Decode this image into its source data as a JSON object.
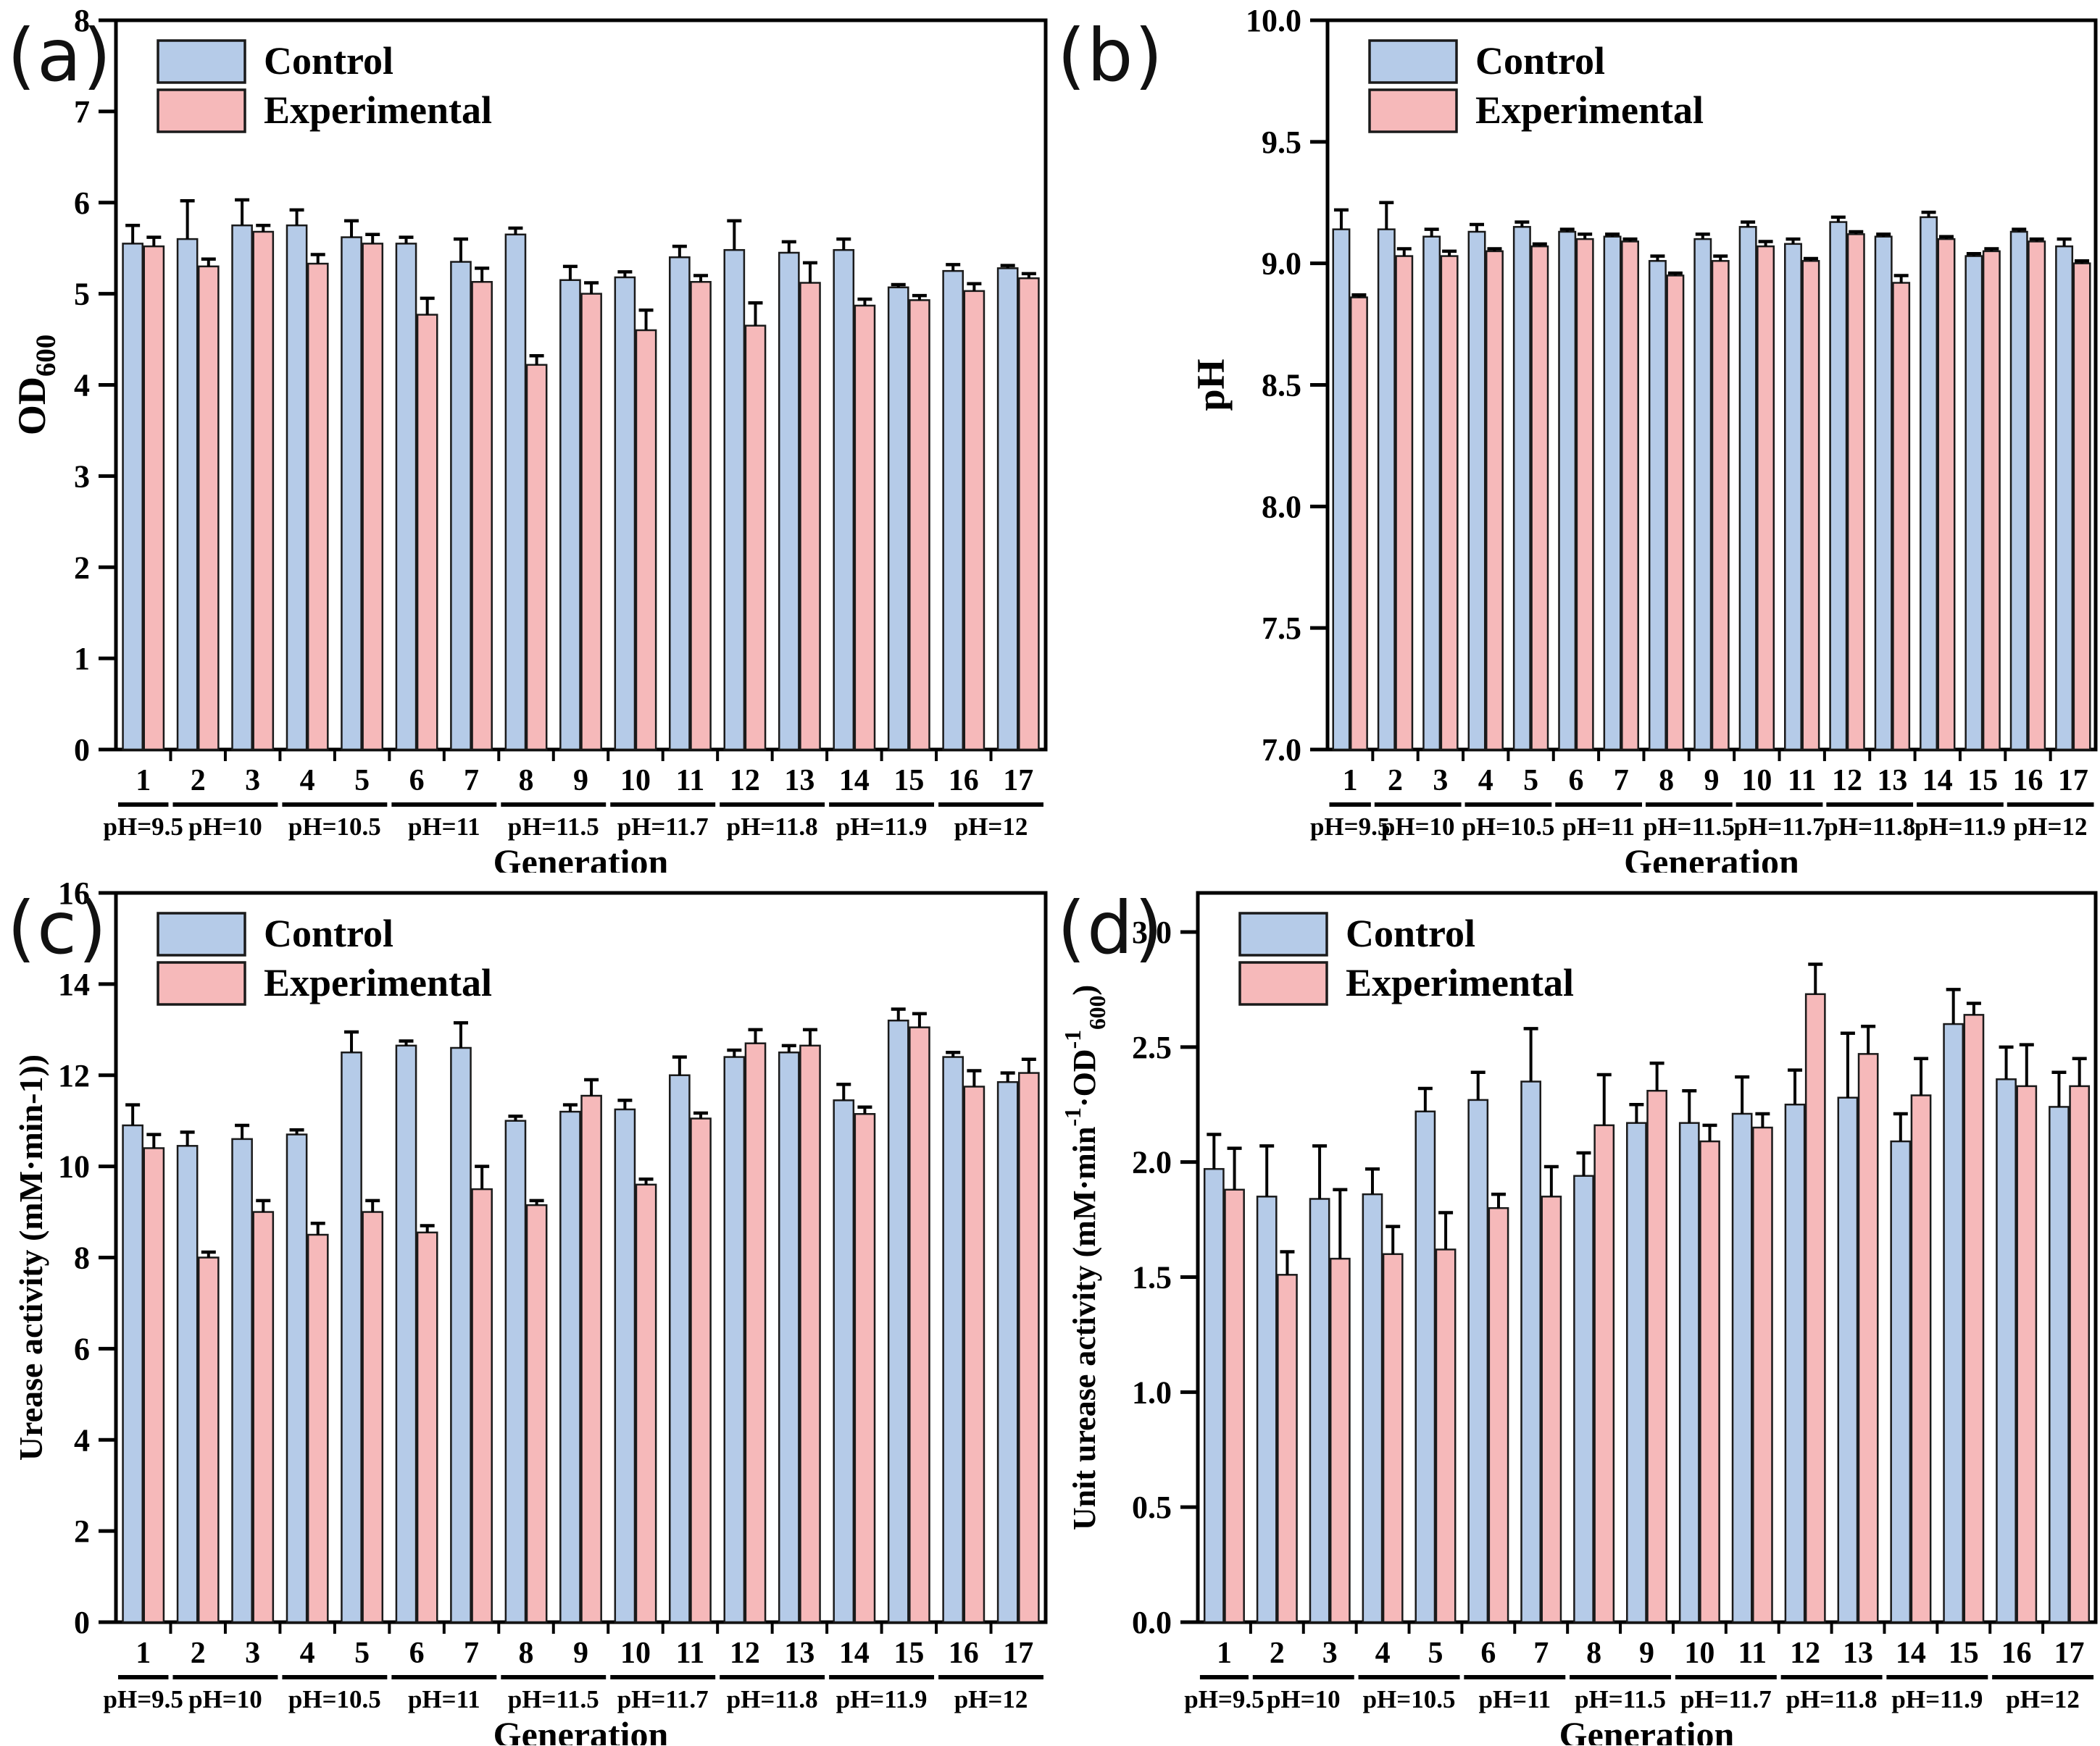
{
  "figure": {
    "legend": {
      "control_label": "Control",
      "experimental_label": "Experimental"
    },
    "colors": {
      "control_fill": "#b5cbe8",
      "experimental_fill": "#f6b9ba",
      "bar_stroke": "#1a1a1a",
      "axis_color": "#000000",
      "text_color": "#000000"
    },
    "x_axis_title": "Generation"
  },
  "chart_data": [
    {
      "type": "bar",
      "panel_label": "(a)",
      "ylabel": "OD600",
      "ylabel_parts": [
        {
          "t": "OD"
        },
        {
          "t": "600",
          "sub": true
        }
      ],
      "xlabel": "Generation",
      "categories": [
        "1",
        "2",
        "3",
        "4",
        "5",
        "6",
        "7",
        "8",
        "9",
        "10",
        "11",
        "12",
        "13",
        "14",
        "15",
        "16",
        "17"
      ],
      "group_labels": [
        {
          "label": "pH=9.5",
          "span": [
            1,
            1
          ]
        },
        {
          "label": "pH=10",
          "span": [
            2,
            3
          ]
        },
        {
          "label": "pH=10.5",
          "span": [
            4,
            5
          ]
        },
        {
          "label": "pH=11",
          "span": [
            6,
            7
          ]
        },
        {
          "label": "pH=11.5",
          "span": [
            8,
            9
          ]
        },
        {
          "label": "pH=11.7",
          "span": [
            10,
            11
          ]
        },
        {
          "label": "pH=11.8",
          "span": [
            12,
            13
          ]
        },
        {
          "label": "pH=11.9",
          "span": [
            14,
            15
          ]
        },
        {
          "label": "pH=12",
          "span": [
            16,
            17
          ]
        }
      ],
      "series": [
        {
          "name": "Control",
          "values": [
            5.55,
            5.6,
            5.75,
            5.75,
            5.62,
            5.55,
            5.35,
            5.65,
            5.15,
            5.18,
            5.4,
            5.48,
            5.45,
            5.48,
            5.07,
            5.25,
            5.28
          ],
          "errors": [
            0.2,
            0.42,
            0.28,
            0.17,
            0.18,
            0.07,
            0.25,
            0.07,
            0.15,
            0.06,
            0.12,
            0.32,
            0.12,
            0.12,
            0.03,
            0.07,
            0.03
          ]
        },
        {
          "name": "Experimental",
          "values": [
            5.52,
            5.3,
            5.68,
            5.33,
            5.55,
            4.77,
            5.13,
            4.22,
            5.0,
            4.6,
            5.13,
            4.65,
            5.12,
            4.87,
            4.93,
            5.03,
            5.17
          ],
          "errors": [
            0.1,
            0.08,
            0.07,
            0.1,
            0.1,
            0.18,
            0.15,
            0.1,
            0.12,
            0.22,
            0.07,
            0.25,
            0.22,
            0.07,
            0.05,
            0.08,
            0.05
          ]
        }
      ],
      "ylim": [
        0,
        8
      ],
      "yticks": [
        "0",
        "1",
        "2",
        "3",
        "4",
        "5",
        "6",
        "7",
        "8"
      ],
      "grid": false,
      "legend_position": "upper-left"
    },
    {
      "type": "bar",
      "panel_label": "(b)",
      "ylabel": "pH",
      "ylabel_parts": [
        {
          "t": "pH"
        }
      ],
      "xlabel": "Generation",
      "categories": [
        "1",
        "2",
        "3",
        "4",
        "5",
        "6",
        "7",
        "8",
        "9",
        "10",
        "11",
        "12",
        "13",
        "14",
        "15",
        "16",
        "17"
      ],
      "group_labels": [
        {
          "label": "pH=9.5",
          "span": [
            1,
            1
          ]
        },
        {
          "label": "pH=10",
          "span": [
            2,
            3
          ]
        },
        {
          "label": "pH=10.5",
          "span": [
            4,
            5
          ]
        },
        {
          "label": "pH=11",
          "span": [
            6,
            7
          ]
        },
        {
          "label": "pH=11.5",
          "span": [
            8,
            9
          ]
        },
        {
          "label": "pH=11.7",
          "span": [
            10,
            11
          ]
        },
        {
          "label": "pH=11.8",
          "span": [
            12,
            13
          ]
        },
        {
          "label": "pH=11.9",
          "span": [
            14,
            15
          ]
        },
        {
          "label": "pH=12",
          "span": [
            16,
            17
          ]
        }
      ],
      "series": [
        {
          "name": "Control",
          "values": [
            9.14,
            9.14,
            9.11,
            9.13,
            9.15,
            9.13,
            9.11,
            9.01,
            9.1,
            9.15,
            9.08,
            9.17,
            9.11,
            9.19,
            9.03,
            9.13,
            9.07
          ],
          "errors": [
            0.08,
            0.11,
            0.03,
            0.03,
            0.02,
            0.01,
            0.01,
            0.02,
            0.02,
            0.02,
            0.02,
            0.02,
            0.01,
            0.02,
            0.01,
            0.01,
            0.03
          ]
        },
        {
          "name": "Experimental",
          "values": [
            8.86,
            9.03,
            9.03,
            9.05,
            9.07,
            9.1,
            9.09,
            8.95,
            9.01,
            9.07,
            9.01,
            9.12,
            8.92,
            9.1,
            9.05,
            9.09,
            9.0
          ],
          "errors": [
            0.01,
            0.03,
            0.02,
            0.01,
            0.01,
            0.02,
            0.01,
            0.01,
            0.02,
            0.02,
            0.01,
            0.01,
            0.03,
            0.01,
            0.01,
            0.01,
            0.01
          ]
        }
      ],
      "ylim": [
        7.0,
        10.0
      ],
      "yticks": [
        "7.0",
        "7.5",
        "8.0",
        "8.5",
        "9.0",
        "9.5",
        "10.0"
      ],
      "grid": false,
      "legend_position": "upper-left"
    },
    {
      "type": "bar",
      "panel_label": "(c)",
      "ylabel": "Urease activity (mM·min-1))",
      "ylabel_parts": [
        {
          "t": "Urease activity (mM·min-1))"
        }
      ],
      "xlabel": "Generation",
      "categories": [
        "1",
        "2",
        "3",
        "4",
        "5",
        "6",
        "7",
        "8",
        "9",
        "10",
        "11",
        "12",
        "13",
        "14",
        "15",
        "16",
        "17"
      ],
      "group_labels": [
        {
          "label": "pH=9.5",
          "span": [
            1,
            1
          ]
        },
        {
          "label": "pH=10",
          "span": [
            2,
            3
          ]
        },
        {
          "label": "pH=10.5",
          "span": [
            4,
            5
          ]
        },
        {
          "label": "pH=11",
          "span": [
            6,
            7
          ]
        },
        {
          "label": "pH=11.5",
          "span": [
            8,
            9
          ]
        },
        {
          "label": "pH=11.7",
          "span": [
            10,
            11
          ]
        },
        {
          "label": "pH=11.8",
          "span": [
            12,
            13
          ]
        },
        {
          "label": "pH=11.9",
          "span": [
            14,
            15
          ]
        },
        {
          "label": "pH=12",
          "span": [
            16,
            17
          ]
        }
      ],
      "series": [
        {
          "name": "Control",
          "values": [
            10.9,
            10.45,
            10.6,
            10.7,
            12.5,
            12.65,
            12.6,
            11.0,
            11.2,
            11.25,
            12.0,
            12.4,
            12.5,
            11.45,
            13.2,
            12.4,
            11.85
          ],
          "errors": [
            0.45,
            0.3,
            0.3,
            0.1,
            0.45,
            0.1,
            0.55,
            0.1,
            0.15,
            0.2,
            0.4,
            0.15,
            0.15,
            0.35,
            0.25,
            0.1,
            0.2
          ]
        },
        {
          "name": "Experimental",
          "values": [
            10.4,
            8.0,
            9.0,
            8.5,
            9.0,
            8.55,
            9.5,
            9.15,
            11.55,
            9.6,
            11.05,
            12.7,
            12.65,
            11.15,
            13.05,
            11.75,
            12.05
          ],
          "errors": [
            0.3,
            0.12,
            0.25,
            0.25,
            0.25,
            0.15,
            0.5,
            0.1,
            0.35,
            0.12,
            0.12,
            0.3,
            0.35,
            0.15,
            0.3,
            0.35,
            0.3
          ]
        }
      ],
      "ylim": [
        0,
        16
      ],
      "yticks": [
        "0",
        "2",
        "4",
        "6",
        "8",
        "10",
        "12",
        "14",
        "16"
      ],
      "grid": false,
      "legend_position": "upper-left"
    },
    {
      "type": "bar",
      "panel_label": "(d)",
      "ylabel": "Unit urease activity (mM·min-1·OD-1 600)",
      "ylabel_parts": [
        {
          "t": "Unit urease activity (mM·min"
        },
        {
          "t": "-1",
          "sup": true
        },
        {
          "t": "·OD"
        },
        {
          "t": "-1",
          "sup": true
        },
        {
          "t": "600",
          "sub": true
        },
        {
          "t": ")"
        }
      ],
      "xlabel": "Generation",
      "categories": [
        "1",
        "2",
        "3",
        "4",
        "5",
        "6",
        "7",
        "8",
        "9",
        "10",
        "11",
        "12",
        "13",
        "14",
        "15",
        "16",
        "17"
      ],
      "group_labels": [
        {
          "label": "pH=9.5",
          "span": [
            1,
            1
          ]
        },
        {
          "label": "pH=10",
          "span": [
            2,
            3
          ]
        },
        {
          "label": "pH=10.5",
          "span": [
            4,
            5
          ]
        },
        {
          "label": "pH=11",
          "span": [
            6,
            7
          ]
        },
        {
          "label": "pH=11.5",
          "span": [
            8,
            9
          ]
        },
        {
          "label": "pH=11.7",
          "span": [
            10,
            11
          ]
        },
        {
          "label": "pH=11.8",
          "span": [
            12,
            13
          ]
        },
        {
          "label": "pH=11.9",
          "span": [
            14,
            15
          ]
        },
        {
          "label": "pH=12",
          "span": [
            16,
            17
          ]
        }
      ],
      "series": [
        {
          "name": "Control",
          "values": [
            1.97,
            1.85,
            1.84,
            1.86,
            2.22,
            2.27,
            2.35,
            1.94,
            2.17,
            2.17,
            2.21,
            2.25,
            2.28,
            2.09,
            2.6,
            2.36,
            2.24
          ],
          "errors": [
            0.15,
            0.22,
            0.23,
            0.11,
            0.1,
            0.12,
            0.23,
            0.1,
            0.08,
            0.14,
            0.16,
            0.15,
            0.28,
            0.12,
            0.15,
            0.14,
            0.15
          ]
        },
        {
          "name": "Experimental",
          "values": [
            1.88,
            1.51,
            1.58,
            1.6,
            1.62,
            1.8,
            1.85,
            2.16,
            2.31,
            2.09,
            2.15,
            2.73,
            2.47,
            2.29,
            2.64,
            2.33,
            2.33
          ],
          "errors": [
            0.18,
            0.1,
            0.3,
            0.12,
            0.16,
            0.06,
            0.13,
            0.22,
            0.12,
            0.07,
            0.06,
            0.13,
            0.12,
            0.16,
            0.05,
            0.18,
            0.12
          ]
        }
      ],
      "ylim": [
        0,
        3.17
      ],
      "yticks": [
        "0.0",
        "0.5",
        "1.0",
        "1.5",
        "2.0",
        "2.5",
        "3.0"
      ],
      "grid": false,
      "legend_position": "upper-left"
    }
  ]
}
